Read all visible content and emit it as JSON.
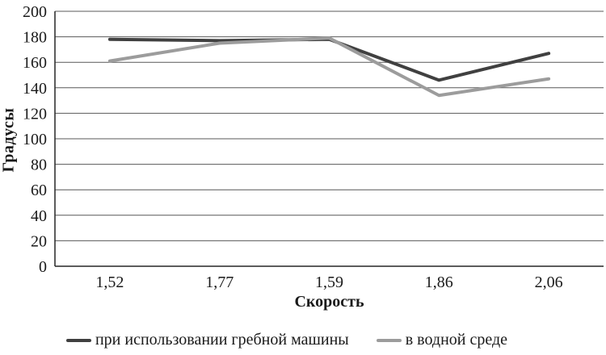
{
  "chart_data": {
    "type": "line",
    "categories": [
      "1,52",
      "1,77",
      "1,59",
      "1,86",
      "2,06"
    ],
    "series": [
      {
        "name": "при использовании гребной машины",
        "color": "#404040",
        "values": [
          178,
          177,
          178,
          146,
          167
        ]
      },
      {
        "name": "в водной среде",
        "color": "#9c9c9c",
        "values": [
          161,
          175,
          179,
          134,
          147
        ]
      }
    ],
    "title": "",
    "xlabel": "Скорость",
    "ylabel": "Градусы",
    "ylim": [
      0,
      200
    ],
    "ytick_step": 20,
    "yticks": [
      "0",
      "20",
      "40",
      "60",
      "80",
      "100",
      "120",
      "140",
      "160",
      "180",
      "200"
    ],
    "grid": true,
    "legend_position": "bottom",
    "colors": {
      "axis": "#262626",
      "grid": "#595959",
      "text": "#1a1a1a",
      "background": "#ffffff"
    }
  }
}
